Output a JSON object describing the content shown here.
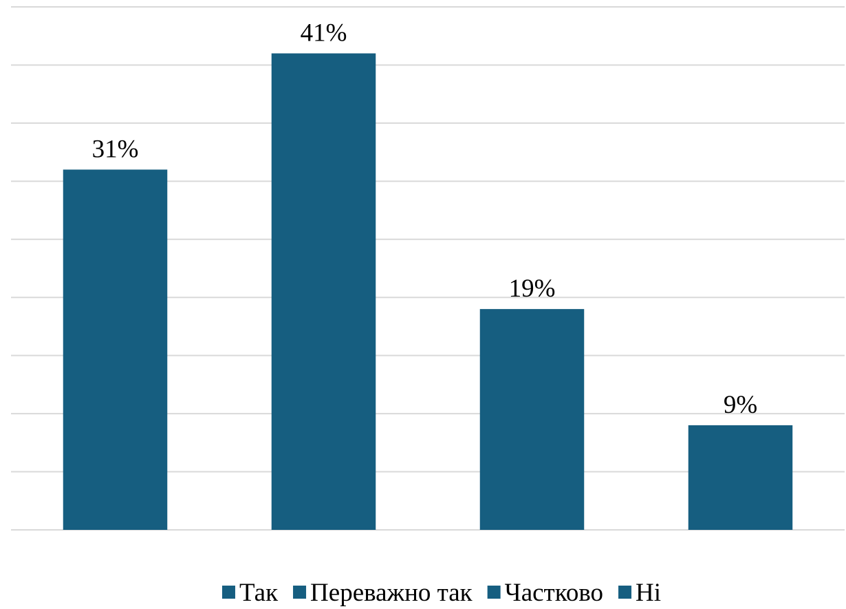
{
  "chart_data": {
    "type": "bar",
    "categories": [
      "Так",
      "Переважно так",
      "Частково",
      "Ні"
    ],
    "values": [
      31,
      41,
      19,
      9
    ],
    "value_labels": [
      "31%",
      "41%",
      "19%",
      "9%"
    ],
    "color": "#165e80",
    "ylim": [
      0,
      45
    ],
    "yticks": [
      0,
      5,
      10,
      15,
      20,
      25,
      30,
      35,
      40,
      45
    ],
    "grid": true,
    "legend": "bottom"
  }
}
